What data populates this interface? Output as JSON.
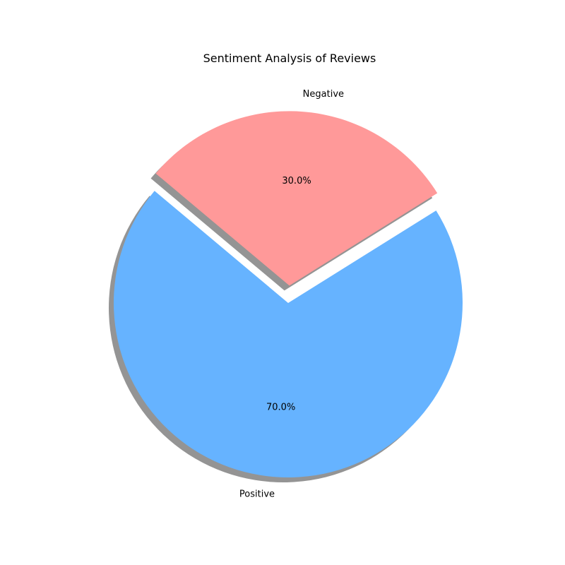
{
  "chart_data": {
    "type": "pie",
    "title": "Sentiment Analysis of Reviews",
    "categories": [
      "Positive",
      "Negative"
    ],
    "values": [
      70,
      30
    ],
    "percent_labels": [
      "70.0%",
      "30.0%"
    ],
    "colors": [
      "#66b3ff",
      "#ff9999"
    ],
    "exploded": [
      "Negative"
    ],
    "shadow": true,
    "legend": "none"
  }
}
